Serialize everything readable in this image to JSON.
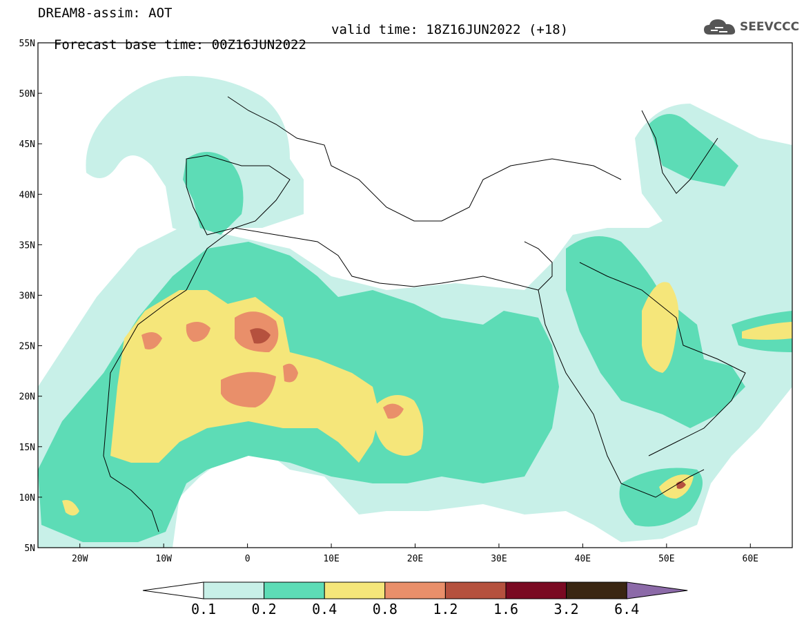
{
  "header": {
    "line1": "DREAM8-assim: AOT",
    "line2_base": "Forecast base time: 00Z16JUN2022",
    "line2_valid": "valid time: 18Z16JUN2022 (+18)"
  },
  "logo": {
    "text": "SEEVCCC",
    "icon": "cloud-icon"
  },
  "map": {
    "lat_labels": [
      "55N",
      "50N",
      "45N",
      "40N",
      "35N",
      "30N",
      "25N",
      "20N",
      "15N",
      "10N",
      "5N"
    ],
    "lon_labels": [
      "20W",
      "10W",
      "0",
      "10E",
      "20E",
      "30E",
      "40E",
      "50E",
      "60E"
    ],
    "lon_range": [
      -25,
      65
    ],
    "lat_range": [
      5,
      55
    ]
  },
  "legend": {
    "colors": [
      "#ffffff",
      "#c8f0e8",
      "#5ddcb6",
      "#f5e67a",
      "#e98f6a",
      "#b5513e",
      "#7a0a22",
      "#3a2612",
      "#8c6aa8"
    ],
    "labels": [
      "0.1",
      "0.2",
      "0.4",
      "0.8",
      "1.2",
      "1.6",
      "3.2",
      "6.4"
    ]
  }
}
